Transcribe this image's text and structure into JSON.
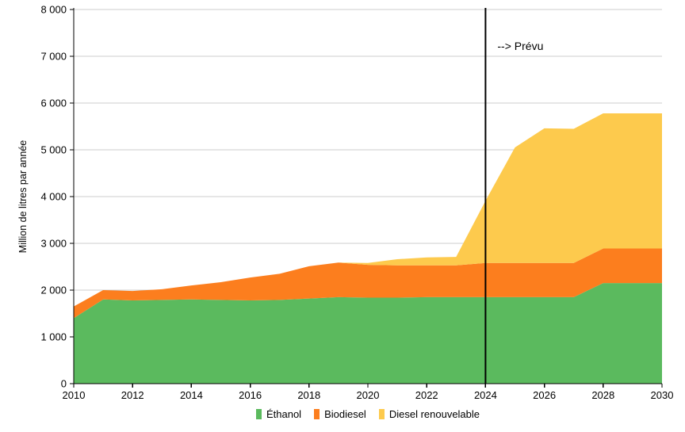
{
  "chart_data": {
    "type": "area",
    "stacked": true,
    "title": "",
    "xlabel": "",
    "ylabel": "Million de litres par année",
    "xlim": [
      2010,
      2030
    ],
    "ylim": [
      0,
      8000
    ],
    "grid": true,
    "legend_position": "bottom",
    "x": [
      2010,
      2011,
      2012,
      2013,
      2014,
      2015,
      2016,
      2017,
      2018,
      2019,
      2020,
      2021,
      2022,
      2023,
      2024,
      2025,
      2026,
      2027,
      2028,
      2029,
      2030
    ],
    "series": [
      {
        "name": "Éthanol",
        "color": "#5BBA5E",
        "values": [
          1400,
          1800,
          1780,
          1790,
          1800,
          1790,
          1780,
          1790,
          1820,
          1850,
          1840,
          1840,
          1850,
          1850,
          1850,
          1850,
          1850,
          1850,
          2150,
          2150,
          2150
        ]
      },
      {
        "name": "Biodiesel",
        "color": "#FC7E1E",
        "values": [
          250,
          200,
          200,
          230,
          300,
          380,
          490,
          560,
          690,
          740,
          700,
          690,
          680,
          680,
          730,
          730,
          730,
          730,
          740,
          740,
          740
        ]
      },
      {
        "name": "Diesel renouvelable",
        "color": "#FDCA4D",
        "values": [
          0,
          0,
          0,
          0,
          0,
          0,
          0,
          0,
          0,
          0,
          40,
          130,
          170,
          180,
          1330,
          2470,
          2880,
          2870,
          2890,
          2890,
          2890
        ]
      }
    ],
    "yticks": [
      0,
      1000,
      2000,
      3000,
      4000,
      5000,
      6000,
      7000,
      8000
    ],
    "ytick_labels": [
      "0",
      "1 000",
      "2 000",
      "3 000",
      "4 000",
      "5 000",
      "6 000",
      "7 000",
      "8 000"
    ],
    "xticks": [
      2010,
      2012,
      2014,
      2016,
      2018,
      2020,
      2022,
      2024,
      2026,
      2028,
      2030
    ],
    "xtick_labels": [
      "2010",
      "2012",
      "2014",
      "2016",
      "2018",
      "2020",
      "2022",
      "2024",
      "2026",
      "2028",
      "2030"
    ],
    "annotation": {
      "text": "--> Prévu",
      "x_year": 2024,
      "has_vertical_line": true
    },
    "colors": {
      "grid": "#cccccc",
      "axis": "#000000",
      "text": "#000000",
      "forecast_line": "#000000",
      "background": "#ffffff"
    }
  }
}
